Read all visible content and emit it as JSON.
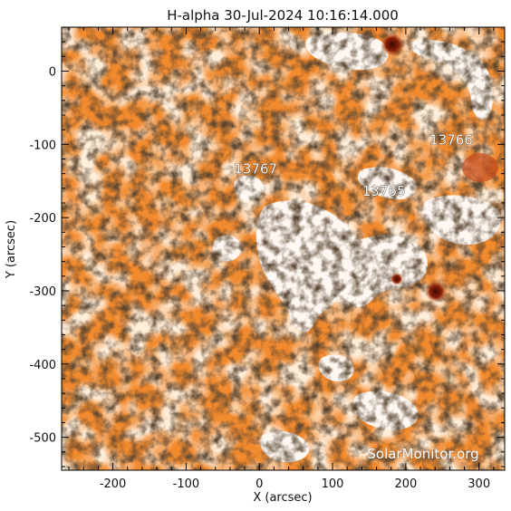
{
  "title": "H-alpha 30-Jul-2024 10:16:14.000",
  "axes": {
    "xlabel": "X (arcsec)",
    "ylabel": "Y (arcsec)",
    "xlim": [
      -270,
      335
    ],
    "ylim": [
      -545,
      60
    ],
    "x_ticks": [
      -200,
      -100,
      0,
      100,
      200,
      300
    ],
    "y_ticks": [
      0,
      -100,
      -200,
      -300,
      -400,
      -500
    ],
    "x_tick_labels": [
      "-200",
      "-100",
      "0",
      "100",
      "200",
      "300"
    ],
    "y_tick_labels": [
      "0",
      "-100",
      "-200",
      "-300",
      "-400",
      "-500"
    ]
  },
  "regions": [
    {
      "label": "13766",
      "x": 262,
      "y": -100
    },
    {
      "label": "13767",
      "x": -5,
      "y": -140
    },
    {
      "label": "13765",
      "x": 170,
      "y": -170
    }
  ],
  "watermark": "SolarMonitor.org",
  "colors": {
    "background": "#f28a2e",
    "plage": "#ffffff",
    "fibril": "#1a0f08",
    "spot": "#8a1e08"
  }
}
